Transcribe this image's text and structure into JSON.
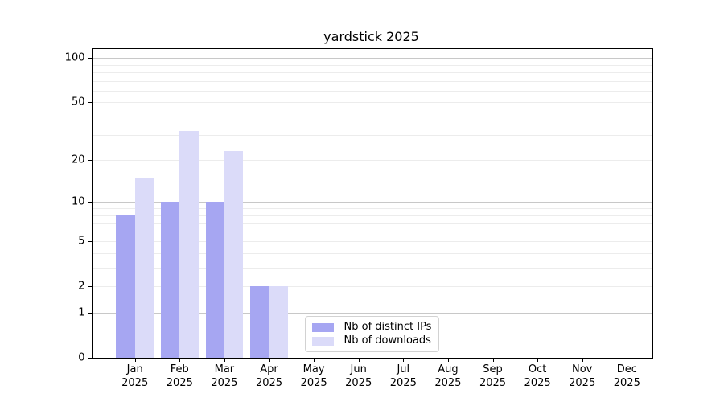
{
  "figure": {
    "background": "#ffffff"
  },
  "chart_data": {
    "type": "bar",
    "title": "yardstick 2025",
    "categories": [
      "Jan",
      "Feb",
      "Mar",
      "Apr",
      "May",
      "Jun",
      "Jul",
      "Aug",
      "Sep",
      "Oct",
      "Nov",
      "Dec"
    ],
    "year": "2025",
    "series": [
      {
        "name": "Nb of distinct IPs",
        "color": "#a6a6f2",
        "values": [
          8,
          10,
          10,
          2,
          0,
          0,
          0,
          0,
          0,
          0,
          0,
          0
        ]
      },
      {
        "name": "Nb of downloads",
        "color": "#dbdbf9",
        "values": [
          15,
          32,
          23,
          2,
          0,
          0,
          0,
          0,
          0,
          0,
          0,
          0
        ]
      }
    ],
    "xlabel": "",
    "ylabel": "",
    "yscale": "log1p",
    "ylim": [
      0,
      115
    ],
    "ytick_values": [
      0,
      1,
      2,
      5,
      10,
      20,
      50,
      100
    ],
    "major_grid_values": [
      1,
      10,
      100
    ],
    "minor_grid_values": [
      2,
      3,
      4,
      5,
      6,
      7,
      8,
      9,
      20,
      30,
      40,
      50,
      60,
      70,
      80,
      90
    ],
    "grid": true,
    "legend": {
      "position": "lower center",
      "border_color": "#d2d2d2"
    },
    "colors": {
      "major_grid": "#c8c8c8",
      "minor_grid": "#ececec",
      "spine": "#000000",
      "text": "#000000"
    }
  }
}
